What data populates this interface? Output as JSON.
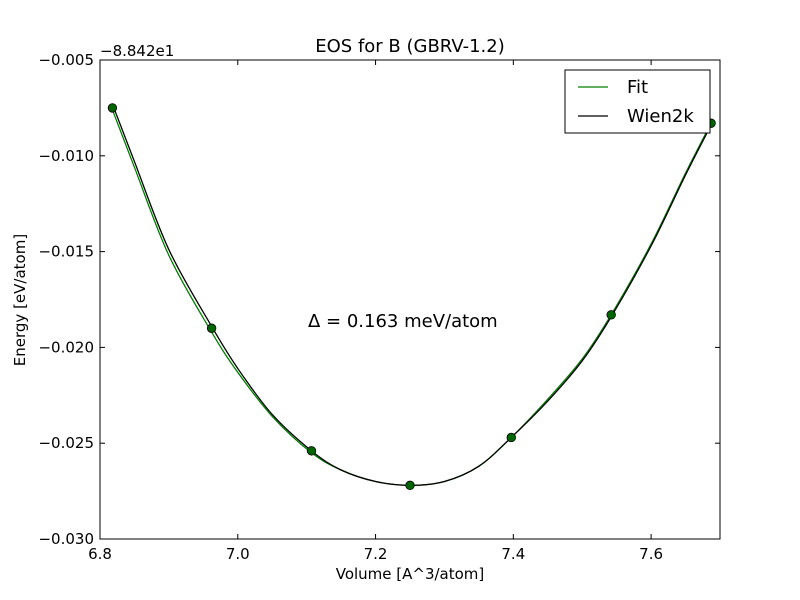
{
  "chart_data": {
    "type": "line",
    "title": "EOS for B (GBRV-1.2)",
    "xlabel": "Volume [A^3/atom]",
    "ylabel": "Energy [eV/atom]",
    "y_offset_label": "−8.842e1",
    "annotation": "Δ = 0.163 meV/atom",
    "xlim": [
      6.8,
      7.7
    ],
    "ylim": [
      -0.03,
      -0.005
    ],
    "xticks": [
      {
        "value": 6.8,
        "label": "6.8"
      },
      {
        "value": 7.0,
        "label": "7.0"
      },
      {
        "value": 7.2,
        "label": "7.2"
      },
      {
        "value": 7.4,
        "label": "7.4"
      },
      {
        "value": 7.6,
        "label": "7.6"
      }
    ],
    "yticks": [
      {
        "value": -0.005,
        "label": "−0.005"
      },
      {
        "value": -0.01,
        "label": "−0.010"
      },
      {
        "value": -0.015,
        "label": "−0.015"
      },
      {
        "value": -0.02,
        "label": "−0.020"
      },
      {
        "value": -0.025,
        "label": "−0.025"
      },
      {
        "value": -0.03,
        "label": "−0.030"
      }
    ],
    "grid": false,
    "legend_position": "top-right",
    "series": [
      {
        "name": "Fit",
        "color": "#008000",
        "x": [
          6.818,
          6.85,
          6.9,
          6.962,
          7.0,
          7.05,
          7.107,
          7.15,
          7.2,
          7.25,
          7.3,
          7.35,
          7.397,
          7.45,
          7.5,
          7.542,
          7.6,
          7.65,
          7.687
        ],
        "y": [
          -0.0076,
          -0.0106,
          -0.0152,
          -0.0192,
          -0.0213,
          -0.0236,
          -0.0255,
          -0.0264,
          -0.027,
          -0.0272,
          -0.027,
          -0.0262,
          -0.0247,
          -0.0227,
          -0.0206,
          -0.0183,
          -0.0146,
          -0.0109,
          -0.0083
        ]
      },
      {
        "name": "Wien2k",
        "color": "#000000",
        "x": [
          6.818,
          6.85,
          6.9,
          6.962,
          7.0,
          7.05,
          7.107,
          7.15,
          7.2,
          7.25,
          7.3,
          7.35,
          7.397,
          7.45,
          7.5,
          7.542,
          7.6,
          7.65,
          7.687
        ],
        "y": [
          -0.0073,
          -0.0103,
          -0.0149,
          -0.0189,
          -0.0211,
          -0.0235,
          -0.0254,
          -0.0264,
          -0.027,
          -0.0272,
          -0.027,
          -0.0262,
          -0.0247,
          -0.0228,
          -0.0207,
          -0.0184,
          -0.0147,
          -0.011,
          -0.0084
        ]
      }
    ],
    "points": {
      "color": "#006400",
      "x": [
        6.818,
        6.962,
        7.107,
        7.25,
        7.397,
        7.542,
        7.687
      ],
      "y": [
        -0.0075,
        -0.019,
        -0.0254,
        -0.0272,
        -0.0247,
        -0.0183,
        -0.0083
      ]
    }
  }
}
